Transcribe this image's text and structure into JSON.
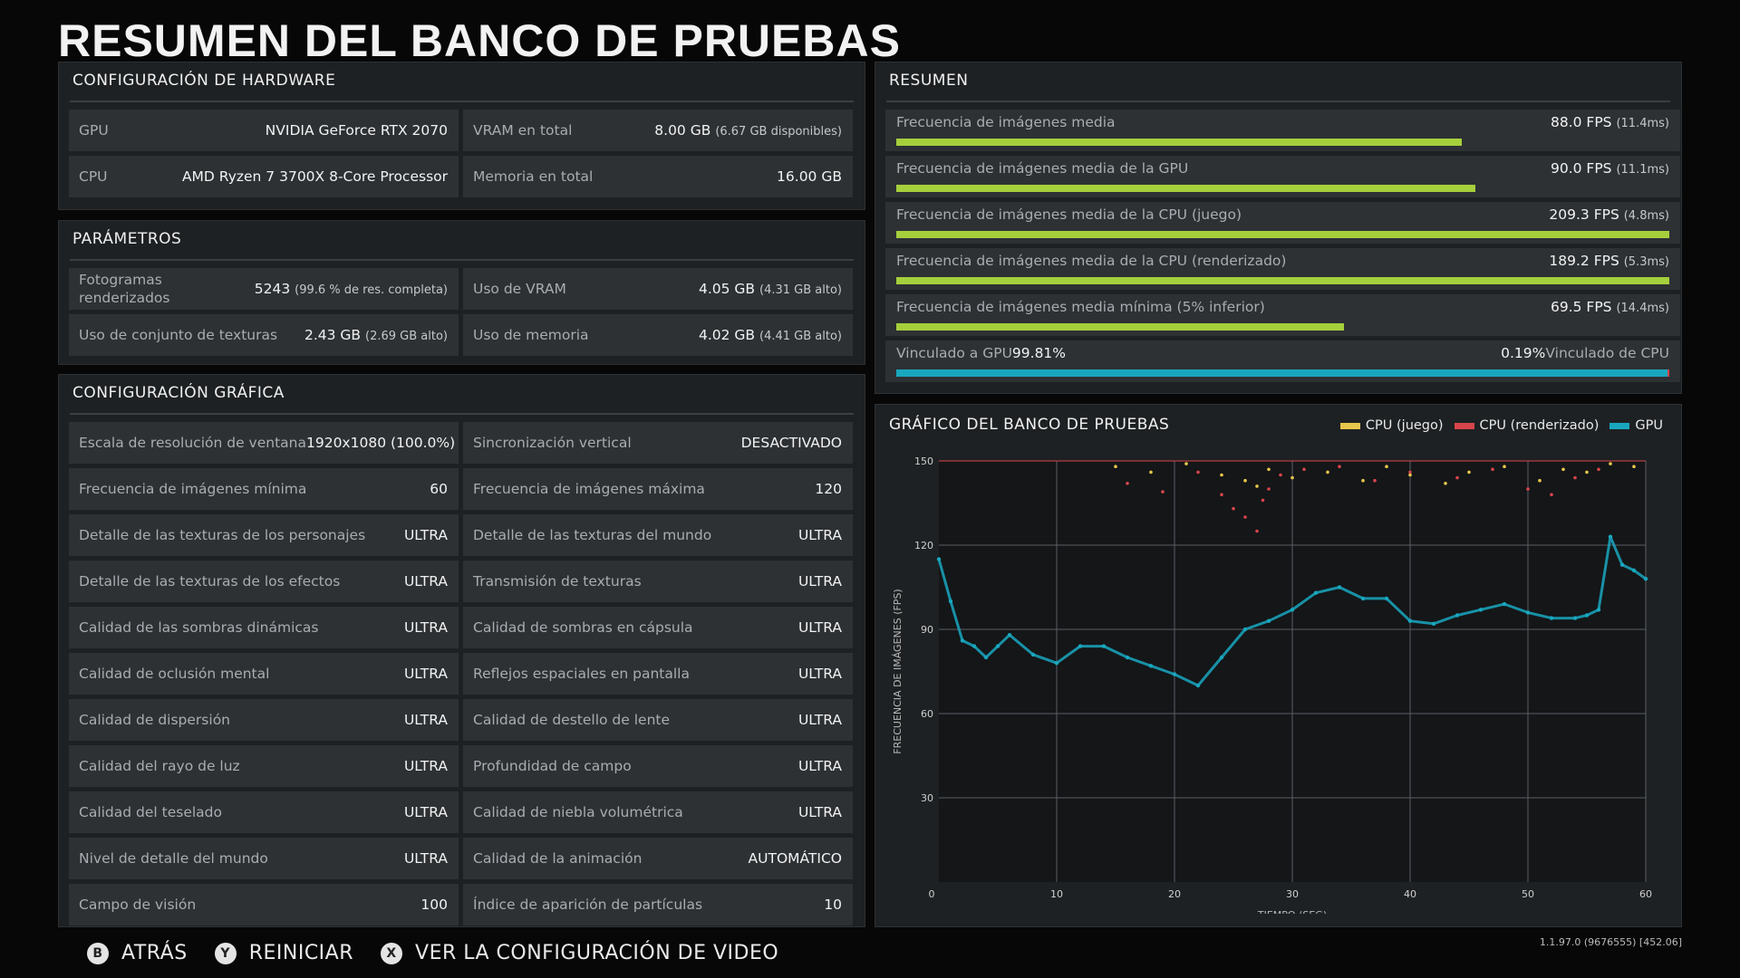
{
  "page": {
    "title": "RESUMEN DEL BANCO DE PRUEBAS"
  },
  "hardware": {
    "title": "CONFIGURACIÓN DE HARDWARE",
    "gpu": {
      "label": "GPU",
      "value": "NVIDIA GeForce RTX 2070"
    },
    "vram": {
      "label": "VRAM en total",
      "value": "8.00 GB",
      "sub": "(6.67 GB disponibles)"
    },
    "cpu": {
      "label": "CPU",
      "value": "AMD Ryzen 7 3700X 8-Core Processor"
    },
    "memory": {
      "label": "Memoria en total",
      "value": "16.00 GB"
    }
  },
  "params": {
    "title": "PARÁMETROS",
    "frames": {
      "label": "Fotogramas renderizados",
      "value": "5243",
      "sub": "(99.6 % de res. completa)"
    },
    "vram_use": {
      "label": "Uso de VRAM",
      "value": "4.05 GB",
      "sub": "(4.31 GB alto)"
    },
    "texture_pool": {
      "label": "Uso de conjunto de texturas",
      "value": "2.43 GB",
      "sub": "(2.69 GB alto)"
    },
    "memory_use": {
      "label": "Uso de memoria",
      "value": "4.02 GB",
      "sub": "(4.41 GB alto)"
    }
  },
  "graphics": {
    "title": "CONFIGURACIÓN GRÁFICA",
    "rows": [
      [
        {
          "label": "Escala de resolución de ventana",
          "value": "1920x1080 (100.0%)"
        },
        {
          "label": "Sincronización vertical",
          "value": "DESACTIVADO"
        }
      ],
      [
        {
          "label": "Frecuencia de imágenes mínima",
          "value": "60"
        },
        {
          "label": "Frecuencia de imágenes máxima",
          "value": "120"
        }
      ],
      [
        {
          "label": "Detalle de las texturas de los personajes",
          "value": "ULTRA"
        },
        {
          "label": "Detalle de las texturas del mundo",
          "value": "ULTRA"
        }
      ],
      [
        {
          "label": "Detalle de las texturas de los efectos",
          "value": "ULTRA"
        },
        {
          "label": "Transmisión de texturas",
          "value": "ULTRA"
        }
      ],
      [
        {
          "label": "Calidad de las sombras dinámicas",
          "value": "ULTRA"
        },
        {
          "label": "Calidad de sombras en cápsula",
          "value": "ULTRA"
        }
      ],
      [
        {
          "label": "Calidad de oclusión mental",
          "value": "ULTRA"
        },
        {
          "label": "Reflejos espaciales en pantalla",
          "value": "ULTRA"
        }
      ],
      [
        {
          "label": "Calidad de dispersión",
          "value": "ULTRA"
        },
        {
          "label": "Calidad de destello de lente",
          "value": "ULTRA"
        }
      ],
      [
        {
          "label": "Calidad del rayo de luz",
          "value": "ULTRA"
        },
        {
          "label": "Profundidad de campo",
          "value": "ULTRA"
        }
      ],
      [
        {
          "label": "Calidad del teselado",
          "value": "ULTRA"
        },
        {
          "label": "Calidad de niebla volumétrica",
          "value": "ULTRA"
        }
      ],
      [
        {
          "label": "Nivel de detalle del mundo",
          "value": "ULTRA"
        },
        {
          "label": "Calidad de la animación",
          "value": "AUTOMÁTICO"
        }
      ],
      [
        {
          "label": "Campo de visión",
          "value": "100"
        },
        {
          "label": "Índice de aparición de partículas",
          "value": "10"
        }
      ]
    ]
  },
  "summary": {
    "title": "RESUMEN",
    "rows": [
      {
        "label": "Frecuencia de imágenes media",
        "value": "88.0 FPS",
        "sub": "(11.4ms)",
        "fraction": 0.732
      },
      {
        "label": "Frecuencia de imágenes media de la GPU",
        "value": "90.0 FPS",
        "sub": "(11.1ms)",
        "fraction": 0.749
      },
      {
        "label": "Frecuencia de imágenes media de la CPU (juego)",
        "value": "209.3 FPS",
        "sub": "(4.8ms)",
        "fraction": 1.0
      },
      {
        "label": "Frecuencia de imágenes media de la CPU (renderizado)",
        "value": "189.2 FPS",
        "sub": "(5.3ms)",
        "fraction": 1.0
      },
      {
        "label": "Frecuencia de imágenes media mínima (5% inferior)",
        "value": "69.5 FPS",
        "sub": "(14.4ms)",
        "fraction": 0.579
      }
    ],
    "bound": {
      "gpu_label": "Vinculado a GPU",
      "gpu_value": "99.81%",
      "cpu_value": "0.19%",
      "cpu_label": "Vinculado de CPU",
      "gpu_fraction": 0.9981
    }
  },
  "chart_data": {
    "type": "scatter",
    "title": "GRÁFICO DEL BANCO DE PRUEBAS",
    "xlabel": "TIEMPO (SEG)",
    "ylabel": "FRECUENCIA DE IMÁGENES (FPS)",
    "xlim": [
      0,
      60
    ],
    "ylim": [
      0,
      150
    ],
    "xticks": [
      0,
      10,
      20,
      30,
      40,
      50,
      60
    ],
    "yticks": [
      30,
      60,
      90,
      120,
      150
    ],
    "grid": true,
    "legend_position": "top-right",
    "series": [
      {
        "name": "CPU (juego)",
        "color": "#e8c64c",
        "x": [
          15,
          18,
          21,
          24,
          26,
          27,
          28,
          30,
          33,
          36,
          38,
          40,
          43,
          45,
          48,
          51,
          53,
          55,
          57,
          59
        ],
        "y": [
          148,
          146,
          149,
          145,
          143,
          141,
          147,
          144,
          146,
          143,
          148,
          145,
          142,
          146,
          148,
          143,
          147,
          146,
          149,
          148
        ]
      },
      {
        "name": "CPU (renderizado)",
        "color": "#d8454a",
        "x": [
          16,
          19,
          22,
          24,
          25,
          26,
          27,
          27.5,
          28,
          29,
          31,
          34,
          37,
          40,
          44,
          47,
          50,
          52,
          54,
          56
        ],
        "y": [
          142,
          139,
          146,
          138,
          133,
          130,
          125,
          136,
          140,
          145,
          147,
          148,
          143,
          146,
          144,
          147,
          140,
          138,
          144,
          147
        ]
      },
      {
        "name": "GPU",
        "color": "#19a7bf",
        "x": [
          0,
          1,
          2,
          3,
          4,
          5,
          6,
          8,
          10,
          12,
          14,
          16,
          18,
          20,
          22,
          24,
          26,
          28,
          30,
          32,
          34,
          36,
          38,
          40,
          42,
          44,
          46,
          48,
          50,
          52,
          54,
          55,
          56,
          57,
          58,
          59,
          60
        ],
        "y": [
          115,
          100,
          86,
          84,
          80,
          84,
          88,
          81,
          78,
          84,
          84,
          80,
          77,
          74,
          70,
          80,
          90,
          93,
          97,
          103,
          105,
          101,
          101,
          93,
          92,
          95,
          97,
          99,
          96,
          94,
          94,
          95,
          97,
          123,
          113,
          111,
          108
        ]
      }
    ]
  },
  "footer": {
    "buttons": [
      {
        "key": "B",
        "label": "ATRÁS"
      },
      {
        "key": "Y",
        "label": "REINICIAR"
      },
      {
        "key": "X",
        "label": "VER LA CONFIGURACIÓN DE VIDEO"
      }
    ],
    "version": "1.1.97.0 (9676555) [452.06]"
  }
}
